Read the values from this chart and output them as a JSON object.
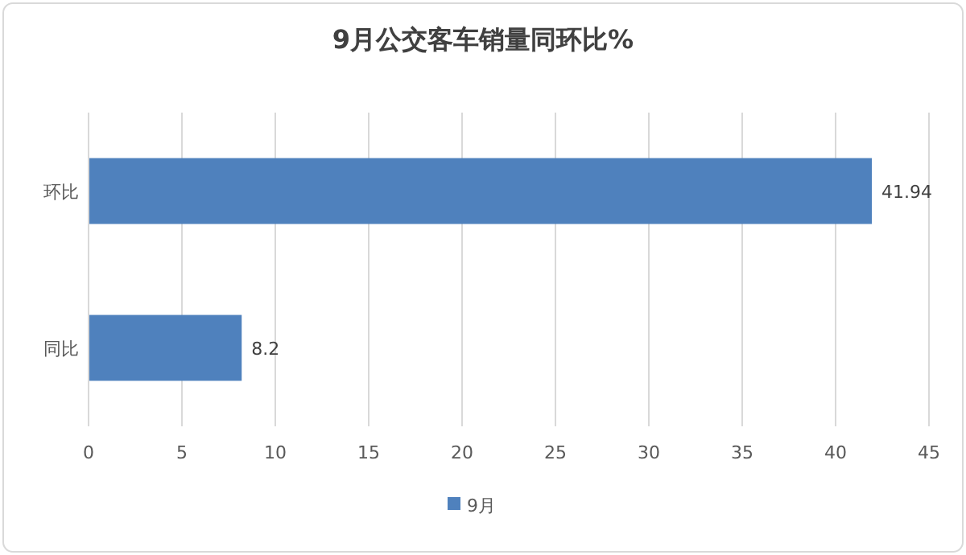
{
  "chart_data": {
    "type": "bar",
    "orientation": "horizontal",
    "title": "9月公交客车销量同环比%",
    "categories": [
      "环比",
      "同比"
    ],
    "series": [
      {
        "name": "9月",
        "color": "#4f81bd",
        "values": [
          41.94,
          8.2
        ]
      }
    ],
    "xlim": [
      0,
      45
    ],
    "xticks": [
      0,
      5,
      10,
      15,
      20,
      25,
      30,
      35,
      40,
      45
    ],
    "grid": "x",
    "legend": "bottom",
    "data_labels": true
  }
}
